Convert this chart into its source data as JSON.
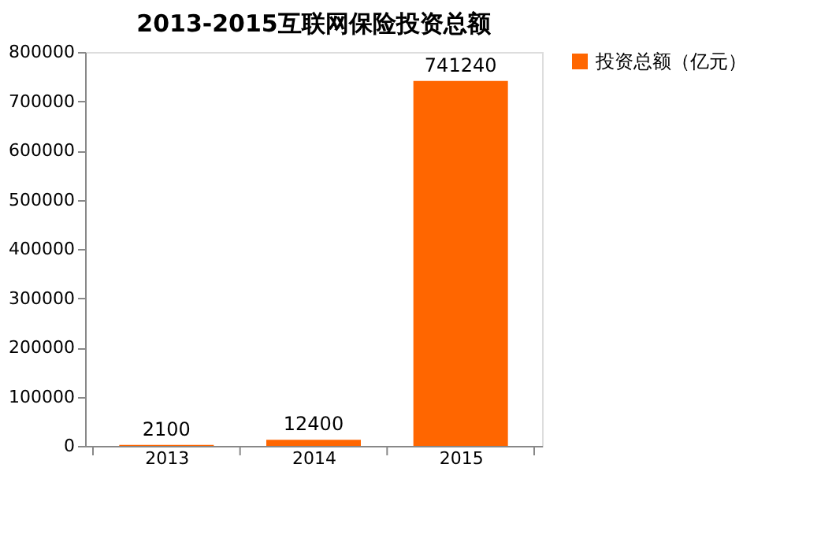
{
  "chart_data": {
    "type": "bar",
    "title": "2013-2015互联网保险投资总额",
    "categories": [
      "2013",
      "2014",
      "2015"
    ],
    "series": [
      {
        "name": "投资总额（亿元）",
        "color": "#ff6600",
        "values": [
          2100,
          12400,
          741240
        ]
      }
    ],
    "ylim": [
      0,
      800000
    ],
    "yticks": [
      0,
      100000,
      200000,
      300000,
      400000,
      500000,
      600000,
      700000,
      800000
    ],
    "data_labels": true,
    "legend": "right",
    "grid": false
  }
}
